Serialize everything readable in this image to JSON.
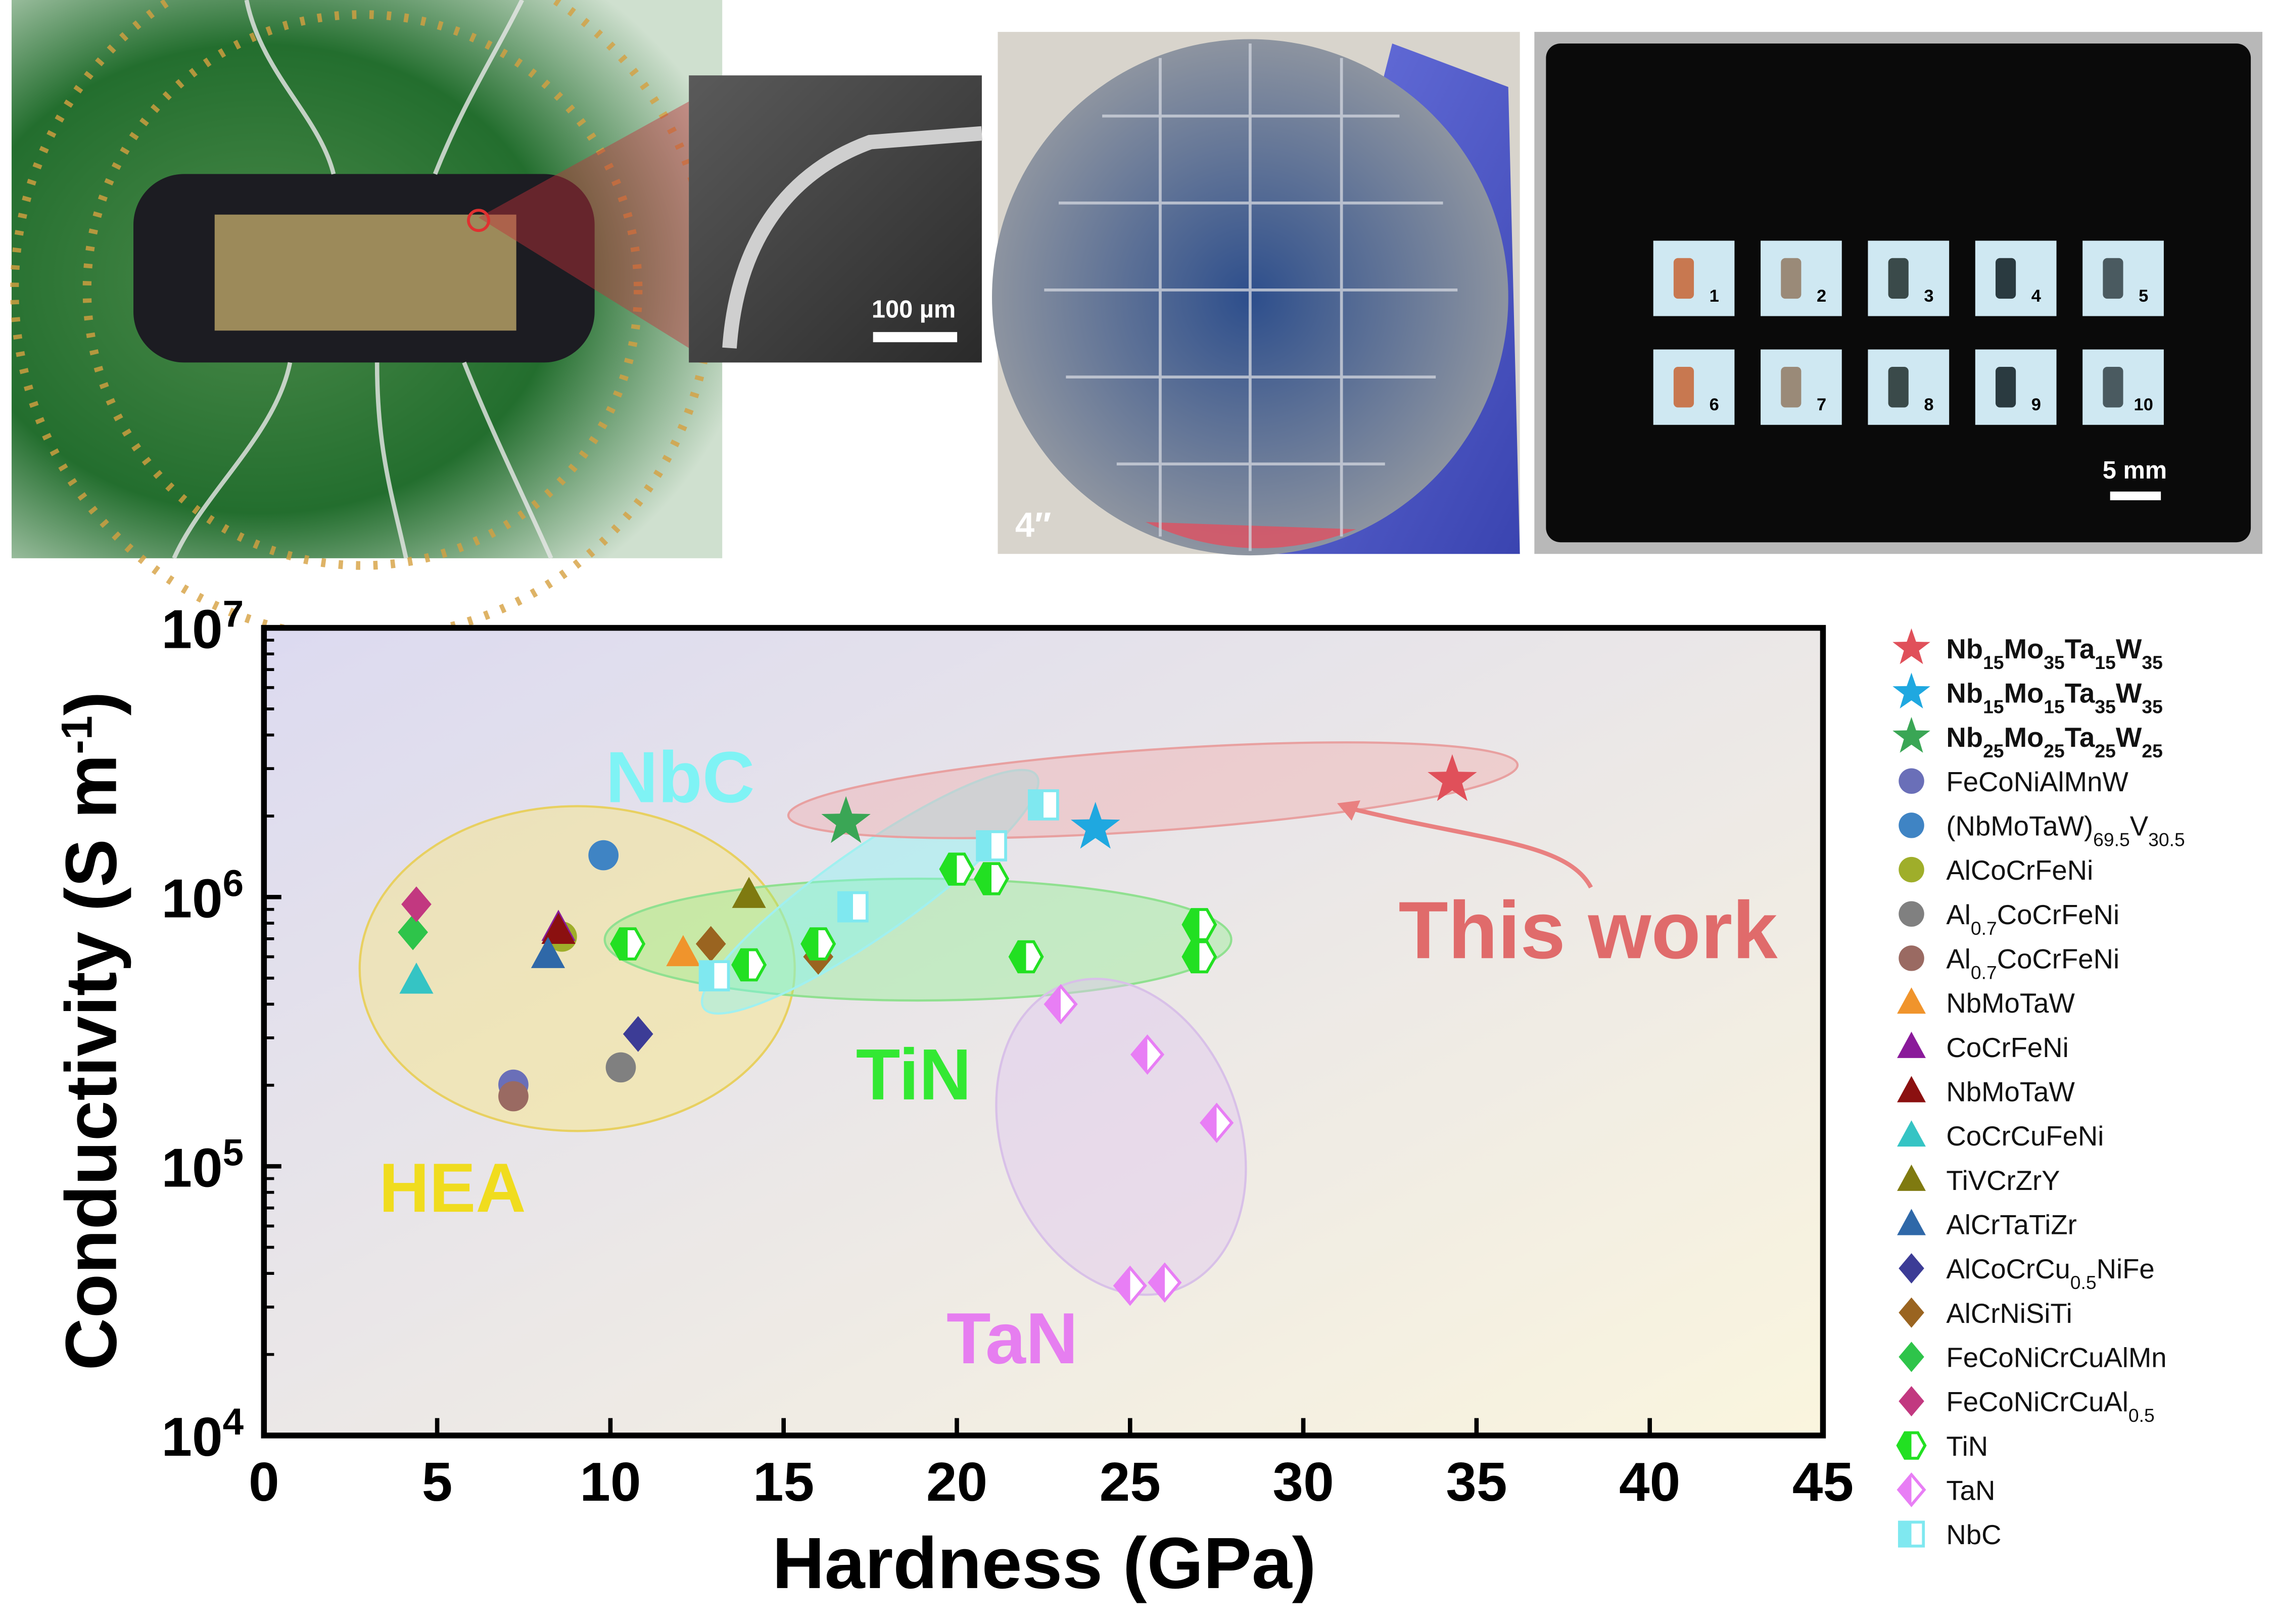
{
  "photos": {
    "sem_scale": "100 µm",
    "wafer_size": "4″",
    "tray_scale": "5 mm",
    "sample_labels": [
      "1",
      "2",
      "3",
      "4",
      "5",
      "6",
      "7",
      "8",
      "9",
      "10"
    ]
  },
  "chart_data": {
    "type": "scatter",
    "x_label": "Hardness (GPa)",
    "y_label": [
      "Conductivity (S m",
      "-1",
      ")"
    ],
    "xlim": [
      0,
      45
    ],
    "xticks": [
      0,
      5,
      10,
      15,
      20,
      25,
      30,
      35,
      40,
      45
    ],
    "ylim": [
      10000,
      10000000
    ],
    "y_scale": "log",
    "yticks": [
      {
        "value": 10000,
        "label": "10",
        "power": "4"
      },
      {
        "value": 100000,
        "label": "10",
        "power": "5"
      },
      {
        "value": 1000000,
        "label": "10",
        "power": "6"
      },
      {
        "value": 10000000,
        "label": "10",
        "power": "7"
      }
    ],
    "annotations": [
      {
        "text": "NbC",
        "color": "#7ff3f5"
      },
      {
        "text": "TiN",
        "color": "#33e833"
      },
      {
        "text": "HEA",
        "color": "#f0dc1e"
      },
      {
        "text": "TaN",
        "color": "#e67ef0"
      },
      {
        "text": "This work",
        "color": "#e06b6b"
      }
    ],
    "legend": "right",
    "series": [
      {
        "name": [
          "Nb",
          "15",
          "Mo",
          "35",
          "Ta",
          "15",
          "W",
          "35"
        ],
        "marker": "star",
        "color": "#e0505a",
        "x": [
          34.3
        ],
        "values": [
          2720000
        ]
      },
      {
        "name": [
          "Nb",
          "15",
          "Mo",
          "15",
          "Ta",
          "35",
          "W",
          "35"
        ],
        "marker": "star",
        "color": "#1fa8e0",
        "x": [
          24.0
        ],
        "values": [
          1810000
        ]
      },
      {
        "name": [
          "Nb",
          "25",
          "Mo",
          "25",
          "Ta",
          "25",
          "W",
          "25"
        ],
        "marker": "star",
        "color": "#3aa655",
        "x": [
          16.8
        ],
        "values": [
          1900000
        ]
      },
      {
        "name": [
          "FeCoNiAlMnW"
        ],
        "marker": "circle",
        "color": "#6a6fb8",
        "x": [
          7.2
        ],
        "values": [
          201000
        ]
      },
      {
        "name": [
          "(NbMoTaW)",
          "69.5",
          "V",
          "30.5"
        ],
        "marker": "circle",
        "color": "#3f84c4",
        "x": [
          9.8
        ],
        "values": [
          1430000
        ]
      },
      {
        "name": [
          "AlCoCrFeNi"
        ],
        "marker": "circle",
        "color": "#9fae2a",
        "x": [
          8.6
        ],
        "values": [
          713000
        ]
      },
      {
        "name": [
          "Al",
          "0.7",
          "CoCrFeNi"
        ],
        "marker": "circle",
        "color": "#808080",
        "x": [
          10.3
        ],
        "values": [
          233000
        ]
      },
      {
        "name": [
          "Al",
          "0.7",
          "CoCrFeNi"
        ],
        "marker": "circle",
        "color": "#9a6a62",
        "x": [
          7.2
        ],
        "values": [
          182000
        ]
      },
      {
        "name": [
          "NbMoTaW"
        ],
        "marker": "triangle",
        "color": "#f0942c",
        "x": [
          12.1
        ],
        "values": [
          620000
        ]
      },
      {
        "name": [
          "CoCrFeNi"
        ],
        "marker": "triangle",
        "color": "#8a1a9a",
        "x": [
          8.5
        ],
        "values": [
          770000
        ]
      },
      {
        "name": [
          "NbMoTaW"
        ],
        "marker": "triangle",
        "color": "#8b1010",
        "x": [
          8.5
        ],
        "values": [
          750000
        ]
      },
      {
        "name": [
          "CoCrCuFeNi"
        ],
        "marker": "triangle",
        "color": "#35c4c4",
        "x": [
          4.4
        ],
        "values": [
          490000
        ]
      },
      {
        "name": [
          "TiVCrZrY"
        ],
        "marker": "triangle",
        "color": "#7f7a10",
        "x": [
          14.0
        ],
        "values": [
          1020000
        ]
      },
      {
        "name": [
          "AlCrTaTiZr"
        ],
        "marker": "triangle",
        "color": "#2f68a8",
        "x": [
          8.2
        ],
        "values": [
          610000
        ]
      },
      {
        "name": [
          "AlCoCrCu",
          "0.5",
          "NiFe"
        ],
        "marker": "diamond",
        "color": "#3c3c96",
        "x": [
          10.8
        ],
        "values": [
          310000
        ]
      },
      {
        "name": [
          "AlCrNiSiTi"
        ],
        "marker": "diamond",
        "color": "#9a6420",
        "x": [
          12.9,
          16.0
        ],
        "values": [
          670000,
          600000
        ]
      },
      {
        "name": [
          "FeCoNiCrCuAlMn"
        ],
        "marker": "diamond",
        "color": "#2ec44a",
        "x": [
          4.3
        ],
        "values": [
          740000
        ]
      },
      {
        "name": [
          "FeCoNiCrCuAl",
          "0.5"
        ],
        "marker": "diamond",
        "color": "#c23880",
        "x": [
          4.4
        ],
        "values": [
          940000
        ]
      },
      {
        "name": [
          "TiN"
        ],
        "marker": "half-hexagon",
        "color": "#22e022",
        "x": [
          10.5,
          14.0,
          16.0,
          20.0,
          21.0,
          22.0,
          27.0,
          27.0
        ],
        "values": [
          670000,
          560000,
          670000,
          1270000,
          1170000,
          600000,
          790000,
          600000
        ]
      },
      {
        "name": [
          "TaN"
        ],
        "marker": "half-diamond",
        "color": "#e87ef5",
        "x": [
          23.0,
          25.5,
          27.5,
          25.0,
          26.0
        ],
        "values": [
          400000,
          260000,
          145000,
          36000,
          37000
        ]
      },
      {
        "name": [
          "NbC"
        ],
        "marker": "half-square",
        "color": "#7fe8f0",
        "x": [
          22.5,
          21.0,
          17.0,
          13.0
        ],
        "values": [
          2200000,
          1550000,
          920000,
          510000
        ]
      }
    ]
  }
}
